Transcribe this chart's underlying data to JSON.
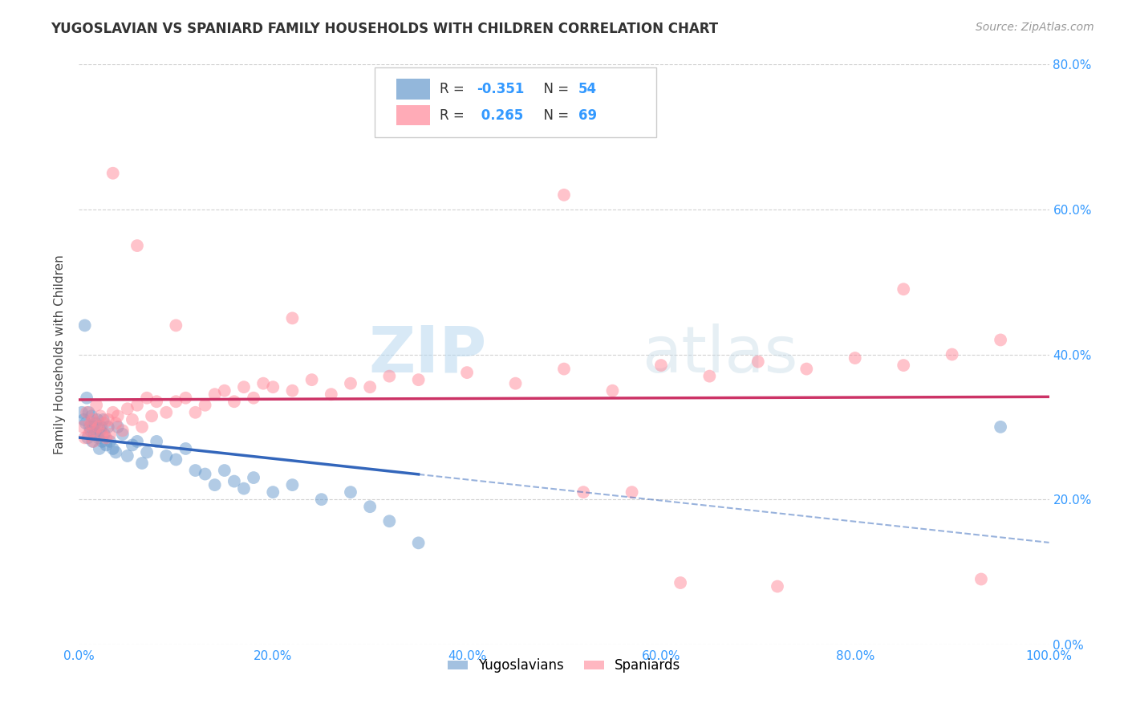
{
  "title": "YUGOSLAVIAN VS SPANIARD FAMILY HOUSEHOLDS WITH CHILDREN CORRELATION CHART",
  "source": "Source: ZipAtlas.com",
  "ylabel": "Family Households with Children",
  "yugoslav_R": -0.351,
  "yugoslav_N": 54,
  "spaniard_R": 0.265,
  "spaniard_N": 69,
  "yugoslav_color": "#6699CC",
  "spaniard_color": "#FF8899",
  "yugoslav_line_color": "#3366BB",
  "spaniard_line_color": "#CC3366",
  "background": "#ffffff",
  "grid_color": "#cccccc",
  "watermark_color": "#cce5f5",
  "label_color": "#3399FF",
  "title_color": "#333333",
  "source_color": "#999999",
  "yugoslav_x": [
    0.3,
    0.5,
    0.7,
    0.8,
    0.9,
    1.0,
    1.1,
    1.2,
    1.3,
    1.4,
    1.5,
    1.6,
    1.7,
    1.8,
    1.9,
    2.0,
    2.1,
    2.2,
    2.3,
    2.4,
    2.5,
    2.6,
    2.8,
    3.0,
    3.2,
    3.5,
    3.8,
    4.0,
    4.5,
    5.0,
    5.5,
    6.0,
    6.5,
    7.0,
    8.0,
    9.0,
    10.0,
    11.0,
    12.0,
    13.0,
    14.0,
    15.0,
    16.0,
    17.0,
    18.0,
    20.0,
    22.0,
    25.0,
    28.0,
    30.0,
    32.0,
    35.0,
    0.6,
    95.0
  ],
  "yugoslav_y": [
    32.0,
    31.0,
    30.5,
    34.0,
    28.5,
    32.0,
    30.0,
    29.5,
    31.5,
    28.0,
    30.0,
    29.0,
    30.5,
    29.0,
    31.0,
    28.5,
    27.0,
    29.5,
    30.0,
    28.0,
    31.0,
    29.0,
    27.5,
    30.0,
    28.0,
    27.0,
    26.5,
    30.0,
    29.0,
    26.0,
    27.5,
    28.0,
    25.0,
    26.5,
    28.0,
    26.0,
    25.5,
    27.0,
    24.0,
    23.5,
    22.0,
    24.0,
    22.5,
    21.5,
    23.0,
    21.0,
    22.0,
    20.0,
    21.0,
    19.0,
    17.0,
    14.0,
    44.0,
    30.0
  ],
  "spaniard_x": [
    0.4,
    0.6,
    0.8,
    1.0,
    1.2,
    1.4,
    1.5,
    1.6,
    1.8,
    2.0,
    2.2,
    2.4,
    2.6,
    2.8,
    3.0,
    3.2,
    3.5,
    3.8,
    4.0,
    4.5,
    5.0,
    5.5,
    6.0,
    6.5,
    7.0,
    7.5,
    8.0,
    9.0,
    10.0,
    11.0,
    12.0,
    13.0,
    14.0,
    15.0,
    16.0,
    17.0,
    18.0,
    19.0,
    20.0,
    22.0,
    24.0,
    26.0,
    28.0,
    30.0,
    32.0,
    35.0,
    40.0,
    45.0,
    50.0,
    55.0,
    60.0,
    65.0,
    70.0,
    75.0,
    80.0,
    85.0,
    90.0,
    95.0,
    3.5,
    6.0,
    10.0,
    22.0,
    50.0,
    52.0,
    57.0,
    62.0,
    72.0,
    85.0,
    93.0
  ],
  "spaniard_y": [
    30.0,
    28.5,
    32.0,
    29.0,
    30.5,
    31.0,
    28.0,
    29.5,
    33.0,
    30.0,
    31.5,
    29.0,
    30.5,
    28.5,
    31.0,
    29.0,
    32.0,
    30.5,
    31.5,
    29.5,
    32.5,
    31.0,
    33.0,
    30.0,
    34.0,
    31.5,
    33.5,
    32.0,
    33.5,
    34.0,
    32.0,
    33.0,
    34.5,
    35.0,
    33.5,
    35.5,
    34.0,
    36.0,
    35.5,
    35.0,
    36.5,
    34.5,
    36.0,
    35.5,
    37.0,
    36.5,
    37.5,
    36.0,
    38.0,
    35.0,
    38.5,
    37.0,
    39.0,
    38.0,
    39.5,
    38.5,
    40.0,
    42.0,
    65.0,
    55.0,
    44.0,
    45.0,
    62.0,
    21.0,
    21.0,
    8.5,
    8.0,
    49.0,
    9.0
  ]
}
